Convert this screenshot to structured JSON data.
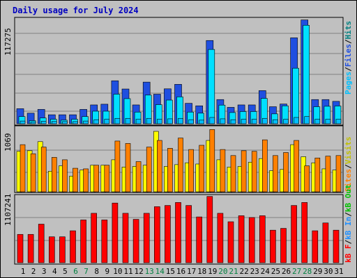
{
  "chart_data": [
    {
      "type": "bar",
      "panel": "hits_files_pages",
      "title": "Daily usage for July 2024",
      "ylabel_max": "117275",
      "legend": [
        "Pages",
        "Files",
        "Hits"
      ],
      "colors": {
        "pages": "#00c0ff",
        "files": "#00e0ff",
        "hits": "#1f4fe0"
      },
      "days": [
        1,
        2,
        3,
        4,
        5,
        6,
        7,
        8,
        9,
        10,
        11,
        12,
        13,
        14,
        15,
        16,
        17,
        18,
        19,
        20,
        21,
        22,
        23,
        24,
        25,
        26,
        27,
        28,
        29,
        30,
        31
      ],
      "weekend_days": [
        6,
        7,
        13,
        14,
        20,
        21,
        27,
        28
      ],
      "ylim": [
        0,
        117275
      ],
      "series": [
        {
          "name": "Hits",
          "values": [
            16800,
            11800,
            16000,
            10000,
            10000,
            10000,
            16000,
            21000,
            21800,
            48000,
            38800,
            21000,
            46500,
            33000,
            39000,
            44000,
            22800,
            20000,
            93000,
            27000,
            18300,
            21000,
            21000,
            37000,
            19000,
            22000,
            96000,
            116000,
            27000,
            27000,
            25000
          ]
        },
        {
          "name": "Files",
          "values": [
            8000,
            3400,
            6400,
            5000,
            4000,
            5000,
            8000,
            14000,
            14000,
            33000,
            28000,
            13000,
            32000,
            21300,
            26400,
            30000,
            13000,
            11800,
            83000,
            20800,
            12500,
            13600,
            13600,
            28300,
            11000,
            20000,
            62000,
            110000,
            19000,
            19500,
            19800
          ]
        },
        {
          "name": "Pages",
          "values": [
            3000,
            2000,
            2800,
            2500,
            2400,
            2400,
            3000,
            4500,
            5000,
            6000,
            6000,
            5000,
            6000,
            5000,
            5500,
            6000,
            4500,
            4000,
            7000,
            5500,
            4500,
            5000,
            5000,
            6000,
            4500,
            5000,
            7000,
            8000,
            5000,
            5000,
            5000
          ]
        }
      ]
    },
    {
      "type": "bar",
      "panel": "visits_sites",
      "ylabel_max": "1069",
      "legend": [
        "Visits",
        "Sites"
      ],
      "colors": {
        "visits": "#ffff00",
        "sites": "#ff8000"
      },
      "ylim": [
        0,
        1069
      ],
      "series": [
        {
          "name": "Visits",
          "values": [
            670,
            680,
            830,
            340,
            430,
            260,
            360,
            440,
            440,
            530,
            410,
            420,
            440,
            1000,
            420,
            450,
            480,
            460,
            850,
            530,
            410,
            420,
            490,
            550,
            350,
            370,
            780,
            580,
            480,
            380,
            360
          ]
        },
        {
          "name": "Sites",
          "values": [
            780,
            630,
            740,
            570,
            530,
            390,
            380,
            440,
            440,
            840,
            800,
            500,
            740,
            850,
            720,
            890,
            700,
            770,
            1030,
            700,
            600,
            680,
            670,
            860,
            600,
            650,
            850,
            430,
            560,
            590,
            600
          ]
        }
      ]
    },
    {
      "type": "bar",
      "panel": "kb",
      "ylabel_max": "1107241",
      "legend": [
        "kB F",
        "kB In",
        "kB Out"
      ],
      "colors": {
        "kb_f": "#ff0000",
        "kb_in": "#2090ff",
        "kb_out": "#00c000"
      },
      "ylim": [
        0,
        1107241
      ],
      "series": [
        {
          "name": "kB F",
          "values": [
            470000,
            470000,
            640000,
            430000,
            430000,
            530000,
            710000,
            820000,
            710000,
            990000,
            820000,
            720000,
            820000,
            930000,
            950000,
            1000000,
            950000,
            760000,
            1100000,
            820000,
            680000,
            780000,
            750000,
            780000,
            540000,
            570000,
            950000,
            1000000,
            530000,
            660000,
            540000
          ]
        }
      ]
    }
  ],
  "x_labels": [
    "1",
    "2",
    "3",
    "4",
    "5",
    "6",
    "7",
    "8",
    "9",
    "10",
    "11",
    "12",
    "13",
    "14",
    "15",
    "16",
    "17",
    "18",
    "19",
    "20",
    "21",
    "22",
    "23",
    "24",
    "25",
    "26",
    "27",
    "28",
    "29",
    "30",
    "31"
  ],
  "right_labels": {
    "panel1": [
      "Pages",
      "Files",
      "Hits"
    ],
    "panel2": [
      "Visits",
      "Sites"
    ],
    "panel3": [
      "kB F",
      "kB In",
      "kB Out"
    ]
  }
}
